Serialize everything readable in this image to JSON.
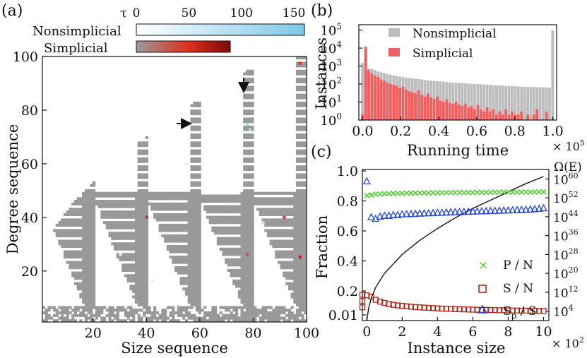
{
  "chart_data": [
    {
      "panel": "(a)",
      "type": "heatmap",
      "xlabel": "Size sequence",
      "ylabel": "Degree sequence",
      "xticks": [
        "20",
        "40",
        "60",
        "80",
        "100"
      ],
      "yticks": [
        "20",
        "40",
        "60",
        "80",
        "100"
      ],
      "xlim": [
        1,
        100
      ],
      "ylim": [
        1,
        100
      ],
      "colorbar": {
        "label": "τ",
        "ticks": [
          "0",
          "50",
          "100",
          "150"
        ],
        "range": [
          0,
          160
        ],
        "rows": [
          {
            "name": "Nonsimplicial",
            "from": "#ffffff",
            "to": "#7ec8e8",
            "max": 160
          },
          {
            "name": "Simplicial",
            "from": "#9a9a9a",
            "to": "#e03020",
            "end": "#7a0a0a",
            "max": 90
          }
        ]
      },
      "feasible_region_note": "cells shown for degree/size sequence pairs with feasible instances; mostly simplicial (gray) near the boundary",
      "arrows": [
        {
          "at_x": 56,
          "at_y": 80,
          "direction": "right"
        },
        {
          "at_x": 77,
          "at_y": 94,
          "direction": "down"
        }
      ]
    },
    {
      "panel": "(b)",
      "type": "bar",
      "title": "",
      "xlabel": "Running time",
      "ylabel": "Instances",
      "x_multiplier": "× 10",
      "x_multiplier_exp": "5",
      "xticks": [
        "0.0",
        "0.2",
        "0.4",
        "0.6",
        "0.8",
        "1.0"
      ],
      "yticks": [
        "10",
        "10",
        "10",
        "10",
        "10",
        "10"
      ],
      "ytick_exps": [
        "0",
        "1",
        "2",
        "3",
        "4",
        "5"
      ],
      "ylim_log10": [
        0,
        5.3
      ],
      "xlim": [
        -0.02,
        1.02
      ],
      "series": [
        {
          "name": "Nonsimplicial",
          "color": "#bdbdbd",
          "values": [
            1500,
            900,
            750,
            700,
            600,
            500,
            450,
            420,
            380,
            330,
            300,
            280,
            260,
            250,
            230,
            220,
            210,
            200,
            190,
            180,
            170,
            160,
            155,
            150,
            145,
            140,
            135,
            130,
            125,
            120,
            118,
            115,
            112,
            110,
            108,
            105,
            102,
            100,
            98,
            95,
            93,
            90,
            88,
            86,
            84,
            82,
            80,
            78,
            76,
            75,
            74,
            72,
            71,
            70,
            69,
            68,
            67,
            66,
            65,
            64,
            63,
            100000
          ]
        },
        {
          "name": "Simplicial",
          "color": "#f06060",
          "values": [
            2,
            12000,
            600,
            400,
            300,
            250,
            180,
            150,
            120,
            100,
            90,
            80,
            60,
            70,
            50,
            40,
            35,
            30,
            45,
            25,
            20,
            30,
            18,
            15,
            20,
            12,
            10,
            14,
            9,
            8,
            10,
            7,
            6,
            8,
            5,
            6,
            4,
            7,
            4,
            3,
            5,
            3,
            4,
            2,
            3,
            2,
            4,
            2,
            3,
            2,
            2,
            3,
            1,
            2,
            1,
            2,
            4,
            1,
            1,
            3,
            1,
            1
          ]
        }
      ]
    },
    {
      "panel": "(c)",
      "type": "scatter",
      "xlabel": "Instance size",
      "ylabel": "Fraction",
      "x_multiplier": "× 10",
      "x_multiplier_exp": "2",
      "xticks": [
        "0",
        "2",
        "4",
        "6",
        "8",
        "10"
      ],
      "xlim": [
        -0.25,
        10.3
      ],
      "yticks": [
        "0.01",
        "0.2",
        "0.4",
        "0.6",
        "0.8",
        "1.0"
      ],
      "ylim": [
        0.01,
        1.0
      ],
      "right_axis": {
        "label": "Ω(E)",
        "ticks": [
          "10",
          "10",
          "10",
          "10",
          "10",
          "10",
          "10",
          "10"
        ],
        "tick_exps": [
          "4",
          "12",
          "20",
          "28",
          "36",
          "44",
          "52",
          "60"
        ],
        "ylim_log10": [
          0,
          64
        ]
      },
      "legend": [
        {
          "label": "P / N",
          "marker": "x",
          "color": "#44cc22"
        },
        {
          "label": "S / N",
          "marker": "square",
          "color": "#aa2211"
        },
        {
          "label": "S",
          "sub": "p",
          "suffix": " / S",
          "marker": "triangle",
          "color": "#2244dd"
        }
      ],
      "series": [
        {
          "name": "P / N",
          "x": [
            0,
            0.25,
            0.5,
            0.75,
            1.0,
            1.25,
            1.5,
            1.75,
            2.0,
            2.25,
            2.5,
            2.75,
            3.0,
            3.25,
            3.5,
            3.75,
            4.0,
            4.25,
            4.5,
            4.75,
            5.0,
            5.25,
            5.5,
            5.75,
            6.0,
            6.25,
            6.5,
            6.75,
            7.0,
            7.25,
            7.5,
            7.75,
            8.0,
            8.25,
            8.5,
            8.75,
            9.0,
            9.25,
            9.5,
            9.75,
            10.0
          ],
          "y": [
            0.835,
            0.84,
            0.845,
            0.845,
            0.848,
            0.848,
            0.85,
            0.85,
            0.85,
            0.852,
            0.852,
            0.852,
            0.853,
            0.853,
            0.853,
            0.854,
            0.854,
            0.855,
            0.855,
            0.855,
            0.855,
            0.856,
            0.856,
            0.856,
            0.856,
            0.857,
            0.857,
            0.857,
            0.857,
            0.857,
            0.858,
            0.858,
            0.858,
            0.858,
            0.858,
            0.859,
            0.859,
            0.859,
            0.859,
            0.86,
            0.86
          ]
        },
        {
          "name": "S / N",
          "x": [
            -0.25,
            -0.25,
            -0.25,
            0,
            0.25,
            0.5,
            0.75,
            1.0,
            1.25,
            1.5,
            1.75,
            2.0,
            2.25,
            2.5,
            2.75,
            3.0,
            3.25,
            3.5,
            3.75,
            4.0,
            4.25,
            4.5,
            4.75,
            5.0,
            5.25,
            5.5,
            5.75,
            6.0,
            6.25,
            6.5,
            6.75,
            7.0,
            7.25,
            7.5,
            7.75,
            8.0,
            8.25,
            8.5,
            8.75,
            9.0,
            9.25,
            9.5,
            9.75,
            10.0
          ],
          "y": [
            0.17,
            0.12,
            0.07,
            0.165,
            0.155,
            0.13,
            0.115,
            0.105,
            0.095,
            0.09,
            0.085,
            0.082,
            0.078,
            0.075,
            0.072,
            0.07,
            0.068,
            0.066,
            0.064,
            0.062,
            0.06,
            0.059,
            0.058,
            0.056,
            0.055,
            0.054,
            0.053,
            0.052,
            0.051,
            0.05,
            0.05,
            0.049,
            0.048,
            0.047,
            0.047,
            0.046,
            0.045,
            0.045,
            0.044,
            0.044,
            0.043,
            0.043,
            0.042,
            0.042
          ]
        },
        {
          "name": "Sp / S",
          "x": [
            0,
            0.25,
            0.5,
            0.75,
            1.0,
            1.25,
            1.5,
            1.75,
            2.0,
            2.25,
            2.5,
            2.75,
            3.0,
            3.25,
            3.5,
            3.75,
            4.0,
            4.25,
            4.5,
            4.75,
            5.0,
            5.25,
            5.5,
            5.75,
            6.0,
            6.25,
            6.5,
            6.75,
            7.0,
            7.25,
            7.5,
            7.75,
            8.0,
            8.25,
            8.5,
            8.75,
            9.0,
            9.25,
            9.5,
            9.75,
            10.0
          ],
          "y": [
            0.93,
            0.69,
            0.68,
            0.695,
            0.7,
            0.7,
            0.705,
            0.705,
            0.71,
            0.71,
            0.712,
            0.713,
            0.715,
            0.716,
            0.717,
            0.718,
            0.72,
            0.72,
            0.722,
            0.723,
            0.724,
            0.725,
            0.726,
            0.727,
            0.728,
            0.729,
            0.73,
            0.731,
            0.732,
            0.733,
            0.734,
            0.735,
            0.736,
            0.737,
            0.738,
            0.739,
            0.74,
            0.742,
            0.744,
            0.747,
            0.75
          ]
        },
        {
          "name": "Ω(E)",
          "axis": "right",
          "type": "line",
          "x": [
            0,
            0.1,
            0.25,
            0.5,
            1,
            2,
            3,
            4,
            5,
            6,
            7,
            8,
            9,
            10
          ],
          "y_log10": [
            0,
            5,
            9.5,
            14,
            20,
            28,
            34,
            39,
            43.5,
            47.5,
            51,
            54.5,
            58,
            61
          ]
        }
      ]
    }
  ]
}
